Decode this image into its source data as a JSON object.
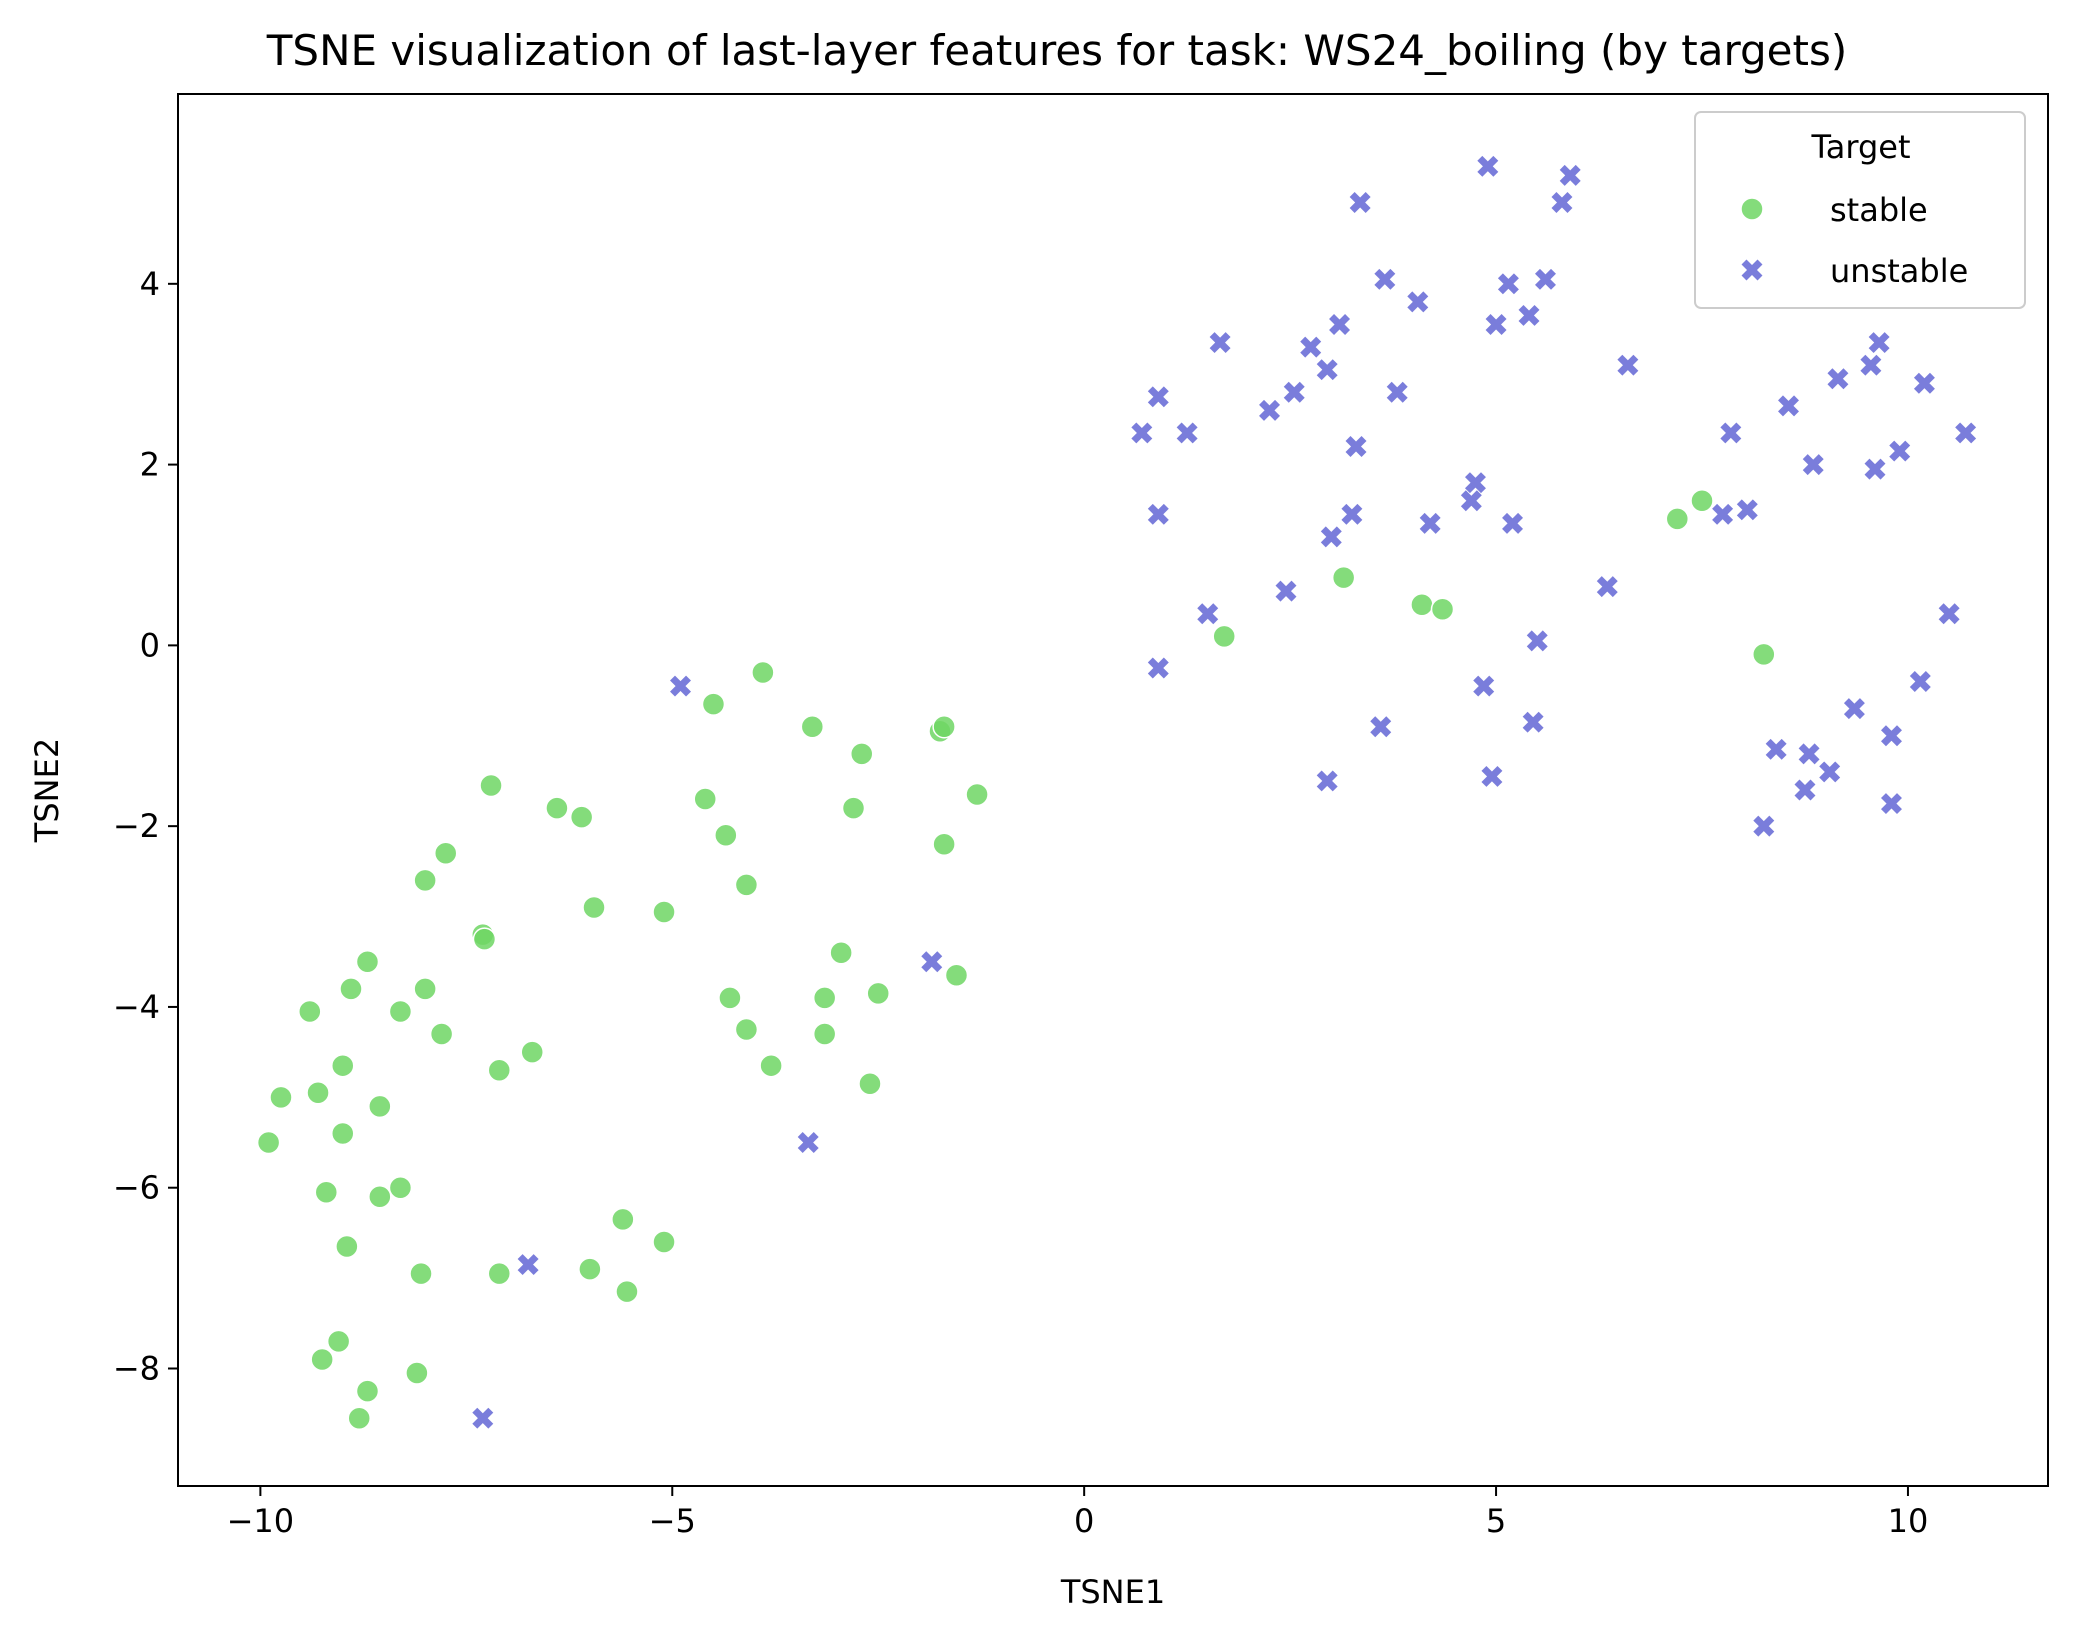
{
  "chart_data": {
    "type": "scatter",
    "title": "TSNE visualization of last-layer features for task: WS24_boiling (by targets)",
    "xlabel": "TSNE1",
    "ylabel": "TSNE2",
    "xlim": [
      -11,
      11.7
    ],
    "ylim": [
      -9.3,
      6.1
    ],
    "xticks": [
      -10,
      -5,
      0,
      5,
      10
    ],
    "xtick_labels": [
      "−10",
      "−5",
      "0",
      "5",
      "10"
    ],
    "yticks": [
      -8,
      -6,
      -4,
      -2,
      0,
      2,
      4
    ],
    "ytick_labels": [
      "−8",
      "−6",
      "−4",
      "−2",
      "0",
      "2",
      "4"
    ],
    "grid": false,
    "legend": {
      "title": "Target",
      "position": "upper right"
    },
    "series": [
      {
        "name": "stable",
        "marker": "circle",
        "color": "#6ed664",
        "points": [
          [
            -9.9,
            -5.5
          ],
          [
            -9.75,
            -5.0
          ],
          [
            -9.4,
            -4.05
          ],
          [
            -9.3,
            -4.95
          ],
          [
            -9.2,
            -6.05
          ],
          [
            -9.25,
            -7.9
          ],
          [
            -9.05,
            -7.7
          ],
          [
            -9.0,
            -4.65
          ],
          [
            -9.0,
            -5.4
          ],
          [
            -8.9,
            -3.8
          ],
          [
            -8.95,
            -6.65
          ],
          [
            -8.7,
            -3.5
          ],
          [
            -8.8,
            -8.55
          ],
          [
            -8.7,
            -8.25
          ],
          [
            -8.55,
            -5.1
          ],
          [
            -8.55,
            -6.1
          ],
          [
            -8.3,
            -6.0
          ],
          [
            -8.3,
            -4.05
          ],
          [
            -8.0,
            -2.6
          ],
          [
            -8.0,
            -3.8
          ],
          [
            -8.05,
            -6.95
          ],
          [
            -8.1,
            -8.05
          ],
          [
            -7.75,
            -2.3
          ],
          [
            -7.8,
            -4.3
          ],
          [
            -7.3,
            -3.2
          ],
          [
            -7.28,
            -3.25
          ],
          [
            -7.2,
            -1.55
          ],
          [
            -7.1,
            -4.7
          ],
          [
            -7.1,
            -6.95
          ],
          [
            -6.7,
            -4.5
          ],
          [
            -6.4,
            -1.8
          ],
          [
            -6.1,
            -1.9
          ],
          [
            -5.95,
            -2.9
          ],
          [
            -6.0,
            -6.9
          ],
          [
            -5.6,
            -6.35
          ],
          [
            -5.55,
            -7.15
          ],
          [
            -5.1,
            -2.95
          ],
          [
            -5.1,
            -6.6
          ],
          [
            -4.6,
            -1.7
          ],
          [
            -4.5,
            -0.65
          ],
          [
            -4.35,
            -2.1
          ],
          [
            -4.3,
            -3.9
          ],
          [
            -4.1,
            -2.65
          ],
          [
            -4.1,
            -4.25
          ],
          [
            -3.9,
            -0.3
          ],
          [
            -3.8,
            -4.65
          ],
          [
            -3.3,
            -0.9
          ],
          [
            -3.15,
            -3.9
          ],
          [
            -3.15,
            -4.3
          ],
          [
            -2.95,
            -3.4
          ],
          [
            -2.8,
            -1.8
          ],
          [
            -2.7,
            -1.2
          ],
          [
            -2.6,
            -4.85
          ],
          [
            -2.5,
            -3.85
          ],
          [
            -1.75,
            -0.95
          ],
          [
            -1.7,
            -0.9
          ],
          [
            -1.7,
            -2.2
          ],
          [
            -1.55,
            -3.65
          ],
          [
            -1.3,
            -1.65
          ],
          [
            1.7,
            0.1
          ],
          [
            3.15,
            0.75
          ],
          [
            4.1,
            0.45
          ],
          [
            4.35,
            0.4
          ],
          [
            7.2,
            1.4
          ],
          [
            7.5,
            1.6
          ],
          [
            8.25,
            -0.1
          ]
        ]
      },
      {
        "name": "unstable",
        "marker": "x",
        "color": "#7a7ddb",
        "points": [
          [
            -4.9,
            -0.45
          ],
          [
            -7.3,
            -8.55
          ],
          [
            -6.75,
            -6.85
          ],
          [
            -3.35,
            -5.5
          ],
          [
            -1.85,
            -3.5
          ],
          [
            0.7,
            2.35
          ],
          [
            0.9,
            2.75
          ],
          [
            0.9,
            1.45
          ],
          [
            0.9,
            -0.25
          ],
          [
            1.25,
            2.35
          ],
          [
            1.5,
            0.35
          ],
          [
            1.65,
            3.35
          ],
          [
            2.25,
            2.6
          ],
          [
            2.45,
            0.6
          ],
          [
            2.55,
            2.8
          ],
          [
            2.75,
            3.3
          ],
          [
            2.95,
            3.05
          ],
          [
            3.0,
            1.2
          ],
          [
            3.1,
            3.55
          ],
          [
            3.25,
            1.45
          ],
          [
            3.3,
            2.2
          ],
          [
            3.35,
            4.9
          ],
          [
            2.95,
            -1.5
          ],
          [
            3.6,
            -0.9
          ],
          [
            3.65,
            4.05
          ],
          [
            3.8,
            2.8
          ],
          [
            4.05,
            3.8
          ],
          [
            4.2,
            1.35
          ],
          [
            4.7,
            1.6
          ],
          [
            4.75,
            1.8
          ],
          [
            4.85,
            -0.45
          ],
          [
            4.9,
            5.3
          ],
          [
            4.95,
            -1.45
          ],
          [
            5.0,
            3.55
          ],
          [
            5.15,
            4.0
          ],
          [
            5.2,
            1.35
          ],
          [
            5.4,
            3.65
          ],
          [
            5.45,
            -0.85
          ],
          [
            5.5,
            0.05
          ],
          [
            5.6,
            4.05
          ],
          [
            5.8,
            4.9
          ],
          [
            5.9,
            5.2
          ],
          [
            6.35,
            0.65
          ],
          [
            6.6,
            3.1
          ],
          [
            7.75,
            1.45
          ],
          [
            7.85,
            2.35
          ],
          [
            8.05,
            1.5
          ],
          [
            8.25,
            -2.0
          ],
          [
            8.4,
            -1.15
          ],
          [
            8.55,
            2.65
          ],
          [
            8.75,
            -1.6
          ],
          [
            8.85,
            2.0
          ],
          [
            8.8,
            -1.2
          ],
          [
            9.05,
            -1.4
          ],
          [
            9.15,
            2.95
          ],
          [
            9.35,
            -0.7
          ],
          [
            9.55,
            3.1
          ],
          [
            9.6,
            1.95
          ],
          [
            9.65,
            3.35
          ],
          [
            9.8,
            -1.75
          ],
          [
            9.8,
            -1.0
          ],
          [
            9.9,
            2.15
          ],
          [
            10.15,
            -0.4
          ],
          [
            10.2,
            2.9
          ],
          [
            10.5,
            0.35
          ],
          [
            10.7,
            2.35
          ]
        ]
      }
    ]
  }
}
